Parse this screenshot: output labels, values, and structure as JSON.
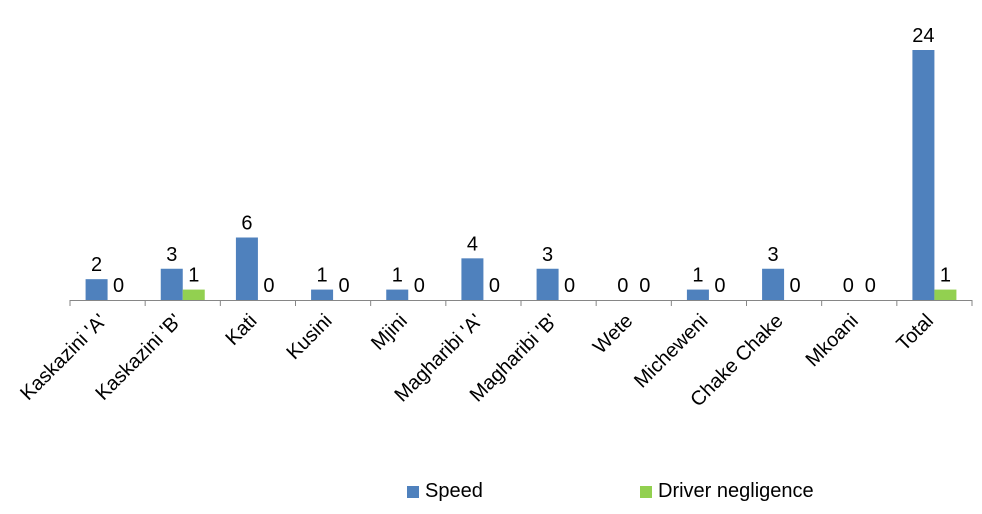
{
  "chart_data": {
    "type": "bar",
    "title": "",
    "xlabel": "",
    "ylabel": "",
    "ylim": [
      0,
      24
    ],
    "grid": false,
    "legend": "bottom",
    "categories": [
      "Kaskazini 'A'",
      "Kaskazini 'B'",
      "Kati",
      "Kusini",
      "Mjini",
      "Magharibi 'A'",
      "Magharibi 'B'",
      "Wete",
      "Micheweni",
      "Chake Chake",
      "Mkoani",
      "Total"
    ],
    "series": [
      {
        "name": "Speed",
        "color": "#4f81bd",
        "values": [
          2,
          3,
          6,
          1,
          1,
          4,
          3,
          0,
          1,
          3,
          0,
          24
        ]
      },
      {
        "name": "Driver negligence",
        "color": "#92d050",
        "values": [
          0,
          1,
          0,
          0,
          0,
          0,
          0,
          0,
          0,
          0,
          0,
          1
        ]
      }
    ]
  }
}
